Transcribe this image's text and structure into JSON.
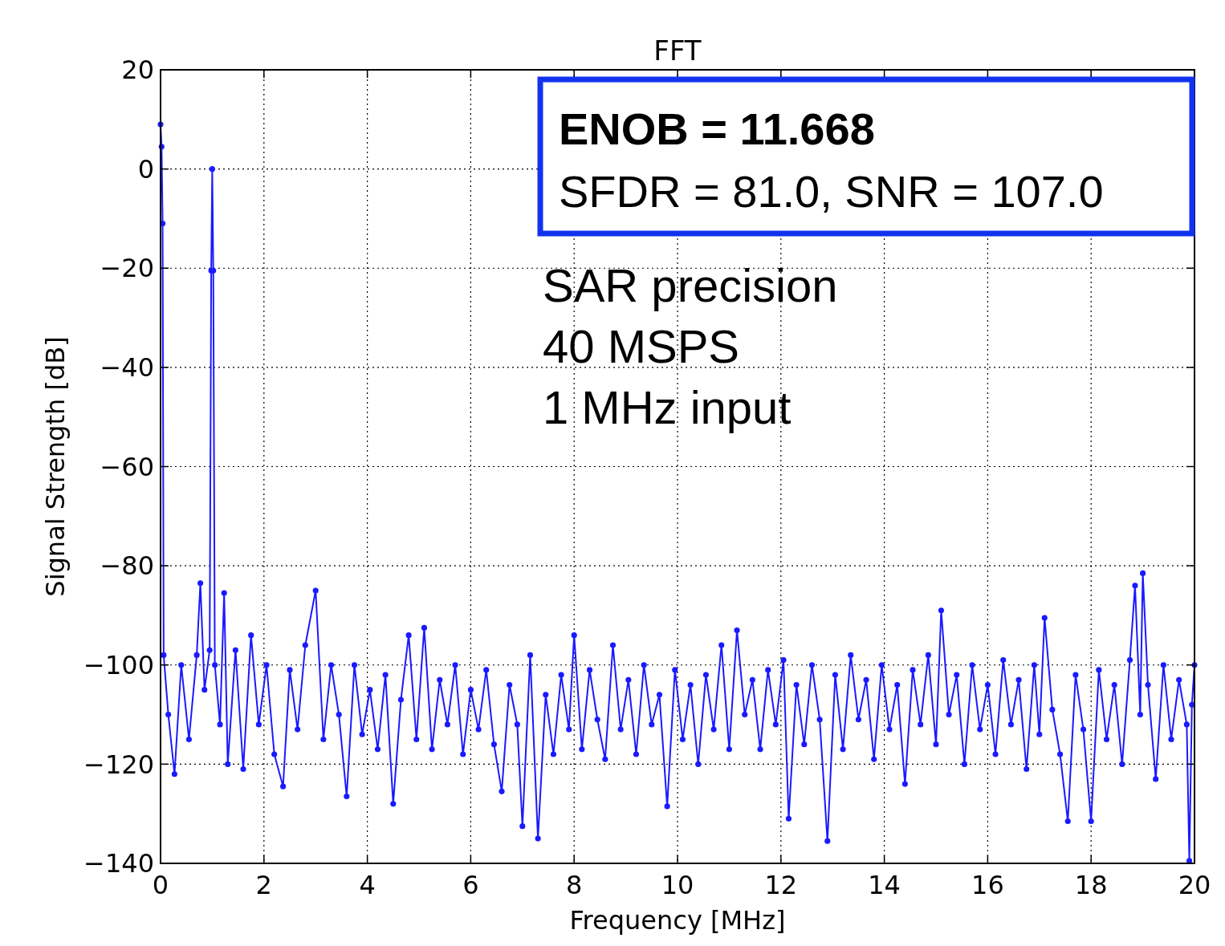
{
  "chart_data": {
    "type": "line",
    "title": "FFT",
    "xlabel": "Frequency [MHz]",
    "ylabel": "Signal Strength [dB]",
    "annotations": [
      "ENOB = 11.668",
      "SFDR = 81.0, SNR = 107.0",
      "SAR precision",
      "40 MSPS",
      "1 MHz input"
    ],
    "xlim": [
      0,
      20
    ],
    "xticks": [
      0,
      2,
      4,
      6,
      8,
      10,
      12,
      14,
      16,
      18,
      20
    ],
    "ylim": [
      -140,
      20
    ],
    "yticks": [
      {
        "value": -140,
        "label": "−140"
      },
      {
        "value": -120,
        "label": "−120"
      },
      {
        "value": -100,
        "label": "−100"
      },
      {
        "value": -80,
        "label": "−80"
      },
      {
        "value": -60,
        "label": "−60"
      },
      {
        "value": -40,
        "label": "−40"
      },
      {
        "value": -20,
        "label": "−20"
      },
      0,
      20
    ],
    "grid": true,
    "marker": "circle",
    "line_style": "solid",
    "series": [
      {
        "color": "#1a1aff",
        "x": [
          0,
          0.02,
          0.04,
          0.06,
          0.15,
          0.27,
          0.4,
          0.55,
          0.7,
          0.77,
          0.85,
          0.95,
          0.98,
          1.0,
          1.02,
          1.05,
          1.15,
          1.23,
          1.3,
          1.45,
          1.6,
          1.75,
          1.9,
          2.05,
          2.2,
          2.37,
          2.5,
          2.65,
          2.8,
          3.0,
          3.15,
          3.3,
          3.45,
          3.6,
          3.75,
          3.9,
          4.05,
          4.2,
          4.35,
          4.5,
          4.65,
          4.8,
          4.95,
          5.1,
          5.25,
          5.4,
          5.55,
          5.7,
          5.85,
          6.0,
          6.15,
          6.3,
          6.45,
          6.6,
          6.75,
          6.9,
          7.0,
          7.15,
          7.3,
          7.45,
          7.6,
          7.75,
          7.9,
          8.0,
          8.15,
          8.3,
          8.45,
          8.6,
          8.75,
          8.9,
          9.05,
          9.2,
          9.35,
          9.5,
          9.65,
          9.8,
          9.95,
          10.1,
          10.25,
          10.4,
          10.55,
          10.7,
          10.85,
          11.0,
          11.15,
          11.3,
          11.45,
          11.6,
          11.75,
          11.9,
          12.05,
          12.15,
          12.3,
          12.45,
          12.6,
          12.75,
          12.9,
          13.05,
          13.2,
          13.35,
          13.5,
          13.65,
          13.8,
          13.95,
          14.1,
          14.25,
          14.4,
          14.55,
          14.7,
          14.85,
          15.0,
          15.1,
          15.25,
          15.4,
          15.55,
          15.7,
          15.85,
          16.0,
          16.15,
          16.3,
          16.45,
          16.6,
          16.75,
          16.9,
          17.0,
          17.1,
          17.25,
          17.4,
          17.55,
          17.7,
          17.85,
          18.0,
          18.15,
          18.3,
          18.45,
          18.6,
          18.75,
          18.85,
          18.95,
          19.0,
          19.1,
          19.25,
          19.4,
          19.55,
          19.7,
          19.85,
          19.9,
          19.95,
          20.0
        ],
        "values": [
          9,
          4.5,
          -11,
          -98,
          -110,
          -122,
          -100,
          -115,
          -98,
          -83.5,
          -105,
          -97,
          -20.5,
          0,
          -20.5,
          -100,
          -112,
          -85.5,
          -120,
          -97,
          -121,
          -94,
          -112,
          -100,
          -118,
          -124.5,
          -101,
          -113,
          -96,
          -85,
          -115,
          -100,
          -110,
          -126.5,
          -100,
          -114,
          -105,
          -117,
          -102,
          -128,
          -107,
          -94,
          -115,
          -92.5,
          -117,
          -103,
          -112,
          -100,
          -118,
          -105,
          -113,
          -101,
          -116,
          -125.5,
          -104,
          -112,
          -132.5,
          -98,
          -135,
          -106,
          -118,
          -102,
          -113,
          -94,
          -117,
          -101,
          -111,
          -119,
          -96,
          -113,
          -103,
          -118,
          -100,
          -112,
          -106,
          -128.5,
          -101,
          -115,
          -104,
          -120,
          -102,
          -113,
          -96,
          -117,
          -93,
          -110,
          -103,
          -117,
          -101,
          -112,
          -99,
          -131,
          -104,
          -116,
          -100,
          -111,
          -135.5,
          -102,
          -117,
          -98,
          -111,
          -103,
          -119,
          -100,
          -113,
          -104,
          -124,
          -101,
          -112,
          -98,
          -116,
          -89,
          -110,
          -102,
          -120,
          -100,
          -113,
          -104,
          -118,
          -99,
          -112,
          -103,
          -121,
          -100,
          -114,
          -90.5,
          -109,
          -118,
          -131.5,
          -102,
          -113,
          -131.5,
          -101,
          -115,
          -104,
          -120,
          -99,
          -84,
          -110,
          -81.5,
          -104,
          -123,
          -100,
          -115,
          -103,
          -112,
          -139.5,
          -108,
          -100
        ]
      }
    ]
  }
}
